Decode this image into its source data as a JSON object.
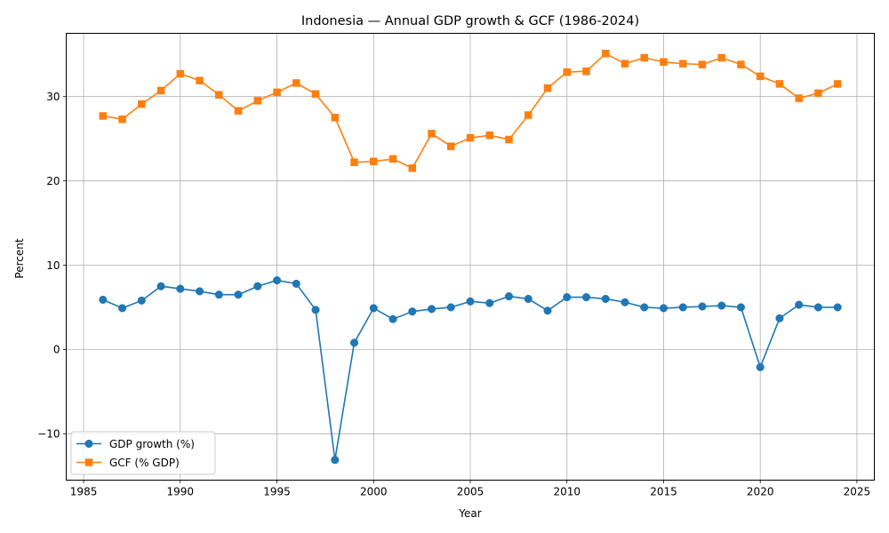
{
  "chart_data": {
    "type": "line",
    "title": "Indonesia — Annual GDP growth & GCF (1986-2024)",
    "xlabel": "Year",
    "ylabel": "Percent",
    "xlim": [
      1984.1,
      2025.9
    ],
    "ylim": [
      -15.5,
      37.5
    ],
    "xticks": [
      1985,
      1990,
      1995,
      2000,
      2005,
      2010,
      2015,
      2020,
      2025
    ],
    "yticks": [
      -10,
      0,
      10,
      20,
      30
    ],
    "grid": true,
    "legend_position": "lower-left",
    "x": [
      1986,
      1987,
      1988,
      1989,
      1990,
      1991,
      1992,
      1993,
      1994,
      1995,
      1996,
      1997,
      1998,
      1999,
      2000,
      2001,
      2002,
      2003,
      2004,
      2005,
      2006,
      2007,
      2008,
      2009,
      2010,
      2011,
      2012,
      2013,
      2014,
      2015,
      2016,
      2017,
      2018,
      2019,
      2020,
      2021,
      2022,
      2023,
      2024
    ],
    "series": [
      {
        "name": "GDP growth (%)",
        "color": "#1f77b4",
        "marker": "circle",
        "values": [
          5.9,
          4.9,
          5.8,
          7.5,
          7.2,
          6.9,
          6.5,
          6.5,
          7.5,
          8.2,
          7.8,
          4.7,
          -13.1,
          0.8,
          4.9,
          3.6,
          4.5,
          4.8,
          5.0,
          5.7,
          5.5,
          6.3,
          6.0,
          4.6,
          6.2,
          6.2,
          6.0,
          5.6,
          5.0,
          4.9,
          5.0,
          5.1,
          5.2,
          5.0,
          -2.1,
          3.7,
          5.3,
          5.0,
          5.0
        ]
      },
      {
        "name": "GCF (% GDP)",
        "color": "#ff7f0e",
        "marker": "square",
        "values": [
          27.7,
          27.3,
          29.1,
          30.7,
          32.7,
          31.9,
          30.2,
          28.3,
          29.5,
          30.5,
          31.6,
          30.3,
          27.5,
          22.2,
          22.3,
          22.6,
          21.5,
          25.6,
          24.1,
          25.1,
          25.4,
          24.9,
          27.8,
          31.0,
          32.9,
          33.0,
          35.1,
          33.9,
          34.6,
          34.1,
          33.9,
          33.8,
          34.6,
          33.8,
          32.4,
          31.5,
          29.8,
          30.4,
          31.5
        ]
      }
    ]
  }
}
